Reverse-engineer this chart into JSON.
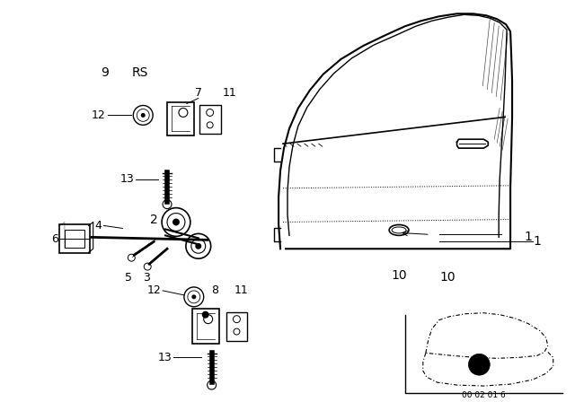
{
  "bg_color": "#ffffff",
  "line_color": "#000000",
  "diagram_number": "00 02 01 6",
  "figsize": [
    6.4,
    4.48
  ],
  "dpi": 100
}
